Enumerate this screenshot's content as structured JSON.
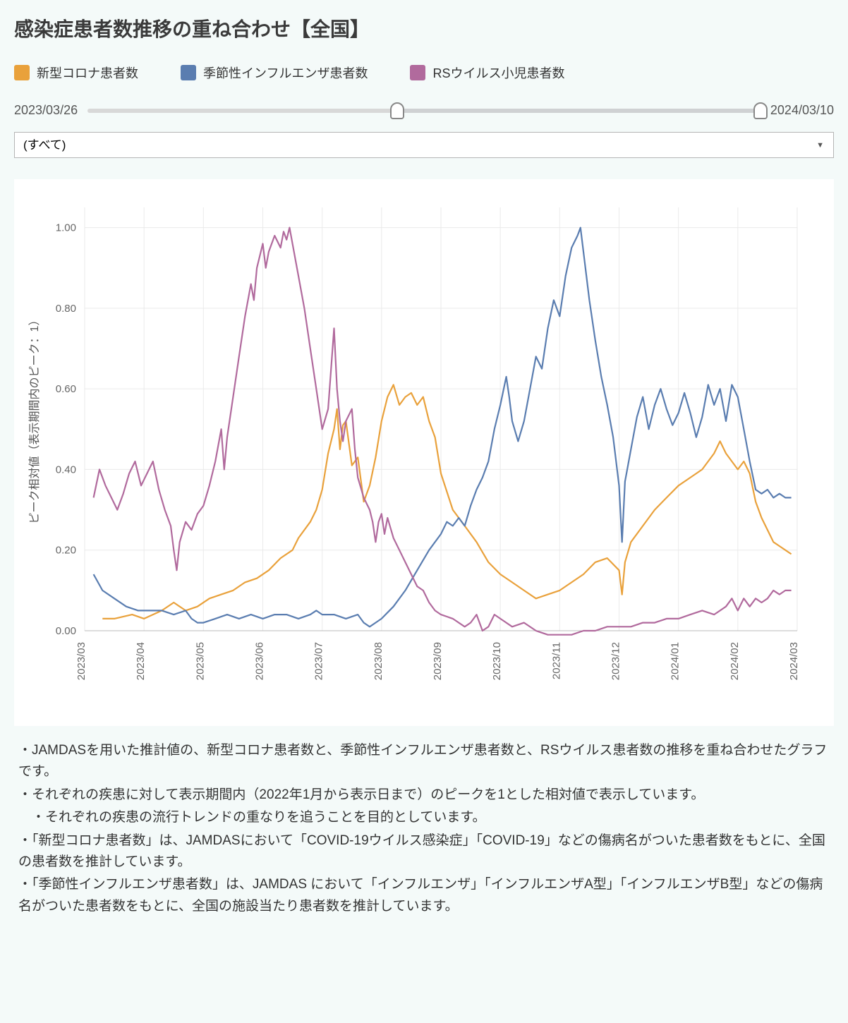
{
  "title": "感染症患者数推移の重ね合わせ【全国】",
  "legend": [
    {
      "label": "新型コロナ患者数",
      "color": "#e9a13b"
    },
    {
      "label": "季節性インフルエンザ患者数",
      "color": "#5a7db0"
    },
    {
      "label": "RSウイルス小児患者数",
      "color": "#b16a9d"
    }
  ],
  "slider": {
    "start_label": "2023/03/26",
    "end_label": "2024/03/10",
    "range_start_pct": 46,
    "range_end_pct": 100
  },
  "dropdown": {
    "selected": "(すべて)"
  },
  "chart": {
    "type": "line",
    "y_label": "ピーク相対値（表示期間内のピーク：1）",
    "background_color": "#ffffff",
    "grid_color": "#eaeaea",
    "axis_color": "#bbbbbb",
    "line_width": 2.2,
    "ylim": [
      0,
      1.05
    ],
    "y_ticks": [
      0.0,
      0.2,
      0.4,
      0.6,
      0.8,
      1.0
    ],
    "y_tick_labels": [
      "0.00",
      "0.20",
      "0.40",
      "0.60",
      "0.80",
      "1.00"
    ],
    "x_ticks": [
      "2023/03",
      "2023/04",
      "2023/05",
      "2023/06",
      "2023/07",
      "2023/08",
      "2023/09",
      "2023/10",
      "2023/11",
      "2023/12",
      "2024/01",
      "2024/02",
      "2024/03"
    ],
    "x_range": [
      0,
      12
    ],
    "series": [
      {
        "name": "covid",
        "color": "#e9a13b",
        "points": [
          [
            0.3,
            0.03
          ],
          [
            0.5,
            0.03
          ],
          [
            0.8,
            0.04
          ],
          [
            1.0,
            0.03
          ],
          [
            1.3,
            0.05
          ],
          [
            1.5,
            0.07
          ],
          [
            1.7,
            0.05
          ],
          [
            1.9,
            0.06
          ],
          [
            2.1,
            0.08
          ],
          [
            2.3,
            0.09
          ],
          [
            2.5,
            0.1
          ],
          [
            2.7,
            0.12
          ],
          [
            2.9,
            0.13
          ],
          [
            3.1,
            0.15
          ],
          [
            3.3,
            0.18
          ],
          [
            3.5,
            0.2
          ],
          [
            3.6,
            0.23
          ],
          [
            3.8,
            0.27
          ],
          [
            3.9,
            0.3
          ],
          [
            4.0,
            0.35
          ],
          [
            4.1,
            0.44
          ],
          [
            4.2,
            0.5
          ],
          [
            4.25,
            0.55
          ],
          [
            4.3,
            0.45
          ],
          [
            4.35,
            0.51
          ],
          [
            4.4,
            0.52
          ],
          [
            4.5,
            0.41
          ],
          [
            4.6,
            0.43
          ],
          [
            4.7,
            0.32
          ],
          [
            4.8,
            0.36
          ],
          [
            4.9,
            0.43
          ],
          [
            5.0,
            0.52
          ],
          [
            5.1,
            0.58
          ],
          [
            5.2,
            0.61
          ],
          [
            5.3,
            0.56
          ],
          [
            5.4,
            0.58
          ],
          [
            5.5,
            0.59
          ],
          [
            5.6,
            0.56
          ],
          [
            5.7,
            0.58
          ],
          [
            5.8,
            0.52
          ],
          [
            5.9,
            0.48
          ],
          [
            6.0,
            0.39
          ],
          [
            6.2,
            0.3
          ],
          [
            6.4,
            0.26
          ],
          [
            6.6,
            0.22
          ],
          [
            6.8,
            0.17
          ],
          [
            7.0,
            0.14
          ],
          [
            7.2,
            0.12
          ],
          [
            7.4,
            0.1
          ],
          [
            7.6,
            0.08
          ],
          [
            7.8,
            0.09
          ],
          [
            8.0,
            0.1
          ],
          [
            8.2,
            0.12
          ],
          [
            8.4,
            0.14
          ],
          [
            8.6,
            0.17
          ],
          [
            8.8,
            0.18
          ],
          [
            9.0,
            0.15
          ],
          [
            9.05,
            0.09
          ],
          [
            9.1,
            0.17
          ],
          [
            9.2,
            0.22
          ],
          [
            9.4,
            0.26
          ],
          [
            9.6,
            0.3
          ],
          [
            9.8,
            0.33
          ],
          [
            10.0,
            0.36
          ],
          [
            10.2,
            0.38
          ],
          [
            10.4,
            0.4
          ],
          [
            10.6,
            0.44
          ],
          [
            10.7,
            0.47
          ],
          [
            10.8,
            0.44
          ],
          [
            10.9,
            0.42
          ],
          [
            11.0,
            0.4
          ],
          [
            11.1,
            0.42
          ],
          [
            11.2,
            0.39
          ],
          [
            11.3,
            0.32
          ],
          [
            11.4,
            0.28
          ],
          [
            11.5,
            0.25
          ],
          [
            11.6,
            0.22
          ],
          [
            11.7,
            0.21
          ],
          [
            11.8,
            0.2
          ],
          [
            11.9,
            0.19
          ]
        ]
      },
      {
        "name": "flu",
        "color": "#5a7db0",
        "points": [
          [
            0.15,
            0.14
          ],
          [
            0.3,
            0.1
          ],
          [
            0.5,
            0.08
          ],
          [
            0.7,
            0.06
          ],
          [
            0.9,
            0.05
          ],
          [
            1.1,
            0.05
          ],
          [
            1.3,
            0.05
          ],
          [
            1.5,
            0.04
          ],
          [
            1.7,
            0.05
          ],
          [
            1.8,
            0.03
          ],
          [
            1.9,
            0.02
          ],
          [
            2.0,
            0.02
          ],
          [
            2.2,
            0.03
          ],
          [
            2.4,
            0.04
          ],
          [
            2.6,
            0.03
          ],
          [
            2.8,
            0.04
          ],
          [
            3.0,
            0.03
          ],
          [
            3.2,
            0.04
          ],
          [
            3.4,
            0.04
          ],
          [
            3.6,
            0.03
          ],
          [
            3.8,
            0.04
          ],
          [
            3.9,
            0.05
          ],
          [
            4.0,
            0.04
          ],
          [
            4.2,
            0.04
          ],
          [
            4.4,
            0.03
          ],
          [
            4.6,
            0.04
          ],
          [
            4.7,
            0.02
          ],
          [
            4.8,
            0.01
          ],
          [
            4.9,
            0.02
          ],
          [
            5.0,
            0.03
          ],
          [
            5.2,
            0.06
          ],
          [
            5.4,
            0.1
          ],
          [
            5.6,
            0.15
          ],
          [
            5.8,
            0.2
          ],
          [
            6.0,
            0.24
          ],
          [
            6.1,
            0.27
          ],
          [
            6.2,
            0.26
          ],
          [
            6.3,
            0.28
          ],
          [
            6.4,
            0.26
          ],
          [
            6.5,
            0.31
          ],
          [
            6.6,
            0.35
          ],
          [
            6.7,
            0.38
          ],
          [
            6.8,
            0.42
          ],
          [
            6.9,
            0.5
          ],
          [
            7.0,
            0.56
          ],
          [
            7.1,
            0.63
          ],
          [
            7.15,
            0.58
          ],
          [
            7.2,
            0.52
          ],
          [
            7.3,
            0.47
          ],
          [
            7.4,
            0.52
          ],
          [
            7.5,
            0.6
          ],
          [
            7.6,
            0.68
          ],
          [
            7.7,
            0.65
          ],
          [
            7.8,
            0.75
          ],
          [
            7.9,
            0.82
          ],
          [
            8.0,
            0.78
          ],
          [
            8.1,
            0.88
          ],
          [
            8.2,
            0.95
          ],
          [
            8.3,
            0.98
          ],
          [
            8.35,
            1.0
          ],
          [
            8.4,
            0.94
          ],
          [
            8.5,
            0.82
          ],
          [
            8.6,
            0.72
          ],
          [
            8.7,
            0.63
          ],
          [
            8.8,
            0.56
          ],
          [
            8.9,
            0.48
          ],
          [
            9.0,
            0.36
          ],
          [
            9.05,
            0.22
          ],
          [
            9.1,
            0.37
          ],
          [
            9.2,
            0.45
          ],
          [
            9.3,
            0.53
          ],
          [
            9.4,
            0.58
          ],
          [
            9.45,
            0.54
          ],
          [
            9.5,
            0.5
          ],
          [
            9.6,
            0.56
          ],
          [
            9.7,
            0.6
          ],
          [
            9.8,
            0.55
          ],
          [
            9.9,
            0.51
          ],
          [
            10.0,
            0.54
          ],
          [
            10.1,
            0.59
          ],
          [
            10.2,
            0.54
          ],
          [
            10.3,
            0.48
          ],
          [
            10.4,
            0.53
          ],
          [
            10.5,
            0.61
          ],
          [
            10.6,
            0.56
          ],
          [
            10.7,
            0.6
          ],
          [
            10.8,
            0.52
          ],
          [
            10.9,
            0.61
          ],
          [
            11.0,
            0.58
          ],
          [
            11.1,
            0.5
          ],
          [
            11.2,
            0.42
          ],
          [
            11.3,
            0.35
          ],
          [
            11.4,
            0.34
          ],
          [
            11.5,
            0.35
          ],
          [
            11.6,
            0.33
          ],
          [
            11.7,
            0.34
          ],
          [
            11.8,
            0.33
          ],
          [
            11.9,
            0.33
          ]
        ]
      },
      {
        "name": "rsv",
        "color": "#b16a9d",
        "points": [
          [
            0.15,
            0.33
          ],
          [
            0.25,
            0.4
          ],
          [
            0.35,
            0.36
          ],
          [
            0.45,
            0.33
          ],
          [
            0.55,
            0.3
          ],
          [
            0.65,
            0.34
          ],
          [
            0.75,
            0.39
          ],
          [
            0.85,
            0.42
          ],
          [
            0.95,
            0.36
          ],
          [
            1.05,
            0.39
          ],
          [
            1.15,
            0.42
          ],
          [
            1.25,
            0.35
          ],
          [
            1.35,
            0.3
          ],
          [
            1.45,
            0.26
          ],
          [
            1.5,
            0.2
          ],
          [
            1.55,
            0.15
          ],
          [
            1.6,
            0.22
          ],
          [
            1.7,
            0.27
          ],
          [
            1.8,
            0.25
          ],
          [
            1.9,
            0.29
          ],
          [
            2.0,
            0.31
          ],
          [
            2.1,
            0.36
          ],
          [
            2.2,
            0.42
          ],
          [
            2.3,
            0.5
          ],
          [
            2.35,
            0.4
          ],
          [
            2.4,
            0.48
          ],
          [
            2.5,
            0.58
          ],
          [
            2.6,
            0.68
          ],
          [
            2.7,
            0.78
          ],
          [
            2.8,
            0.86
          ],
          [
            2.85,
            0.82
          ],
          [
            2.9,
            0.9
          ],
          [
            3.0,
            0.96
          ],
          [
            3.05,
            0.9
          ],
          [
            3.1,
            0.94
          ],
          [
            3.2,
            0.98
          ],
          [
            3.3,
            0.95
          ],
          [
            3.35,
            0.99
          ],
          [
            3.4,
            0.97
          ],
          [
            3.45,
            1.0
          ],
          [
            3.5,
            0.96
          ],
          [
            3.55,
            0.92
          ],
          [
            3.6,
            0.88
          ],
          [
            3.7,
            0.8
          ],
          [
            3.8,
            0.7
          ],
          [
            3.9,
            0.6
          ],
          [
            4.0,
            0.5
          ],
          [
            4.1,
            0.55
          ],
          [
            4.15,
            0.65
          ],
          [
            4.2,
            0.75
          ],
          [
            4.25,
            0.6
          ],
          [
            4.3,
            0.52
          ],
          [
            4.35,
            0.47
          ],
          [
            4.4,
            0.52
          ],
          [
            4.5,
            0.55
          ],
          [
            4.55,
            0.45
          ],
          [
            4.6,
            0.38
          ],
          [
            4.7,
            0.33
          ],
          [
            4.8,
            0.3
          ],
          [
            4.85,
            0.27
          ],
          [
            4.9,
            0.22
          ],
          [
            4.95,
            0.27
          ],
          [
            5.0,
            0.29
          ],
          [
            5.05,
            0.24
          ],
          [
            5.1,
            0.28
          ],
          [
            5.2,
            0.23
          ],
          [
            5.3,
            0.2
          ],
          [
            5.4,
            0.17
          ],
          [
            5.5,
            0.14
          ],
          [
            5.6,
            0.11
          ],
          [
            5.7,
            0.1
          ],
          [
            5.8,
            0.07
          ],
          [
            5.9,
            0.05
          ],
          [
            6.0,
            0.04
          ],
          [
            6.2,
            0.03
          ],
          [
            6.4,
            0.01
          ],
          [
            6.5,
            0.02
          ],
          [
            6.6,
            0.04
          ],
          [
            6.7,
            0.0
          ],
          [
            6.8,
            0.01
          ],
          [
            6.9,
            0.04
          ],
          [
            7.0,
            0.03
          ],
          [
            7.2,
            0.01
          ],
          [
            7.4,
            0.02
          ],
          [
            7.6,
            0.0
          ],
          [
            7.8,
            -0.01
          ],
          [
            8.0,
            -0.01
          ],
          [
            8.2,
            -0.01
          ],
          [
            8.4,
            0.0
          ],
          [
            8.6,
            0.0
          ],
          [
            8.8,
            0.01
          ],
          [
            9.0,
            0.01
          ],
          [
            9.2,
            0.01
          ],
          [
            9.4,
            0.02
          ],
          [
            9.6,
            0.02
          ],
          [
            9.8,
            0.03
          ],
          [
            10.0,
            0.03
          ],
          [
            10.2,
            0.04
          ],
          [
            10.4,
            0.05
          ],
          [
            10.6,
            0.04
          ],
          [
            10.8,
            0.06
          ],
          [
            10.9,
            0.08
          ],
          [
            11.0,
            0.05
          ],
          [
            11.1,
            0.08
          ],
          [
            11.2,
            0.06
          ],
          [
            11.3,
            0.08
          ],
          [
            11.4,
            0.07
          ],
          [
            11.5,
            0.08
          ],
          [
            11.6,
            0.1
          ],
          [
            11.7,
            0.09
          ],
          [
            11.8,
            0.1
          ],
          [
            11.9,
            0.1
          ]
        ]
      }
    ]
  },
  "notes": [
    "・JAMDASを用いた推計値の、新型コロナ患者数と、季節性インフルエンザ患者数と、RSウイルス患者数の推移を重ね合わせたグラフです。",
    "・それぞれの疾患に対して表示期間内（2022年1月から表示日まで）のピークを1とした相対値で表示しています。",
    "　・それぞれの疾患の流行トレンドの重なりを追うことを目的としています。",
    "・「新型コロナ患者数」は、JAMDASにおいて「COVID-19ウイルス感染症」「COVID-19」などの傷病名がついた患者数をもとに、全国の患者数を推計しています。",
    "・「季節性インフルエンザ患者数」は、JAMDAS において「インフルエンザ」「インフルエンザA型」「インフルエンザB型」などの傷病名がついた患者数をもとに、全国の施設当たり患者数を推計しています。"
  ]
}
